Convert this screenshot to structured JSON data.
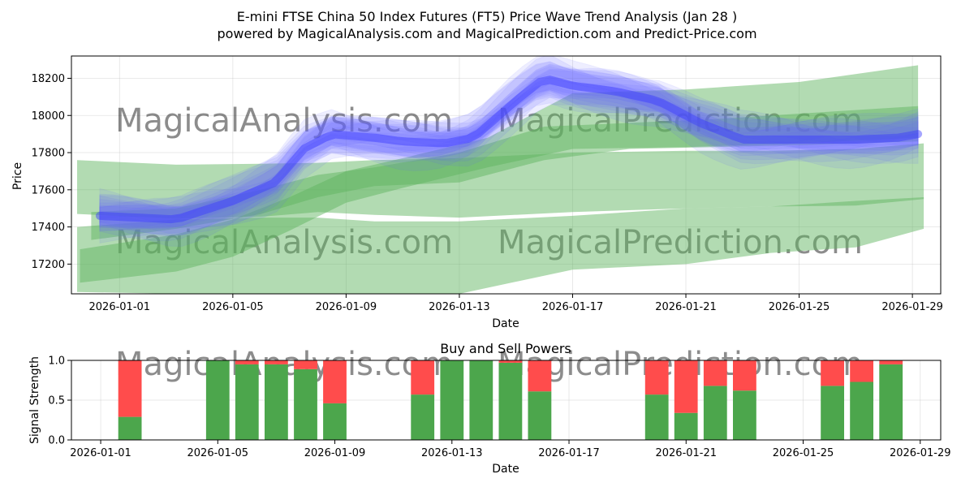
{
  "title_line1": "E-mini FTSE China 50 Index Futures (FT5) Price Wave Trend Analysis (Jan 28 )",
  "title_line2": "powered by MagicalAnalysis.com and MagicalPrediction.com and Predict-Price.com",
  "watermarks": [
    "MagicalAnalysis.com",
    "MagicalPrediction.com"
  ],
  "colors": {
    "buy": "#4ca64c",
    "sell": "#ff4c4c",
    "wave": "#6060ff",
    "band": "#5fb35f"
  },
  "chart_data": [
    {
      "type": "area",
      "title": "",
      "xlabel": "Date",
      "ylabel": "Price",
      "x_tick_labels": [
        "2026-01-01",
        "2026-01-05",
        "2026-01-09",
        "2026-01-13",
        "2026-01-17",
        "2026-01-21",
        "2026-01-25",
        "2026-01-29"
      ],
      "y_ticks": [
        17200,
        17400,
        17600,
        17800,
        18000,
        18200
      ],
      "xlim_days": [
        -1.7,
        29.0
      ],
      "ylim": [
        17040,
        18320
      ],
      "grid": true,
      "bands": [
        {
          "name": "band-upper",
          "x": [
            -1.5,
            2,
            5,
            7,
            9,
            12,
            16,
            20,
            23,
            26,
            28.4
          ],
          "lower": [
            17470,
            17445,
            17455,
            17480,
            17465,
            17450,
            17480,
            17500,
            17510,
            17515,
            17550
          ],
          "upper": [
            17760,
            17735,
            17740,
            17745,
            17760,
            17770,
            17800,
            17810,
            17810,
            17820,
            17850
          ]
        },
        {
          "name": "band-lower",
          "x": [
            -1.5,
            2,
            5,
            7,
            9,
            12,
            16,
            20,
            23,
            26,
            28.4
          ],
          "lower": [
            17050,
            17040,
            17040,
            17030,
            17030,
            17040,
            17170,
            17200,
            17260,
            17290,
            17390
          ],
          "upper": [
            17400,
            17440,
            17450,
            17450,
            17430,
            17430,
            17460,
            17500,
            17510,
            17540,
            17560
          ]
        },
        {
          "name": "band-trend-1",
          "x": [
            -1.4,
            2,
            4,
            6,
            8,
            10,
            13,
            16,
            20,
            24,
            28.2
          ],
          "lower": [
            17100,
            17160,
            17240,
            17380,
            17530,
            17610,
            17720,
            17820,
            17830,
            17850,
            17880
          ],
          "upper": [
            17280,
            17360,
            17440,
            17560,
            17700,
            17770,
            17880,
            18120,
            18140,
            18180,
            18270
          ]
        },
        {
          "name": "band-trend-2",
          "x": [
            -1.0,
            2,
            5,
            7,
            9,
            12,
            15,
            18,
            21,
            24,
            28.2
          ],
          "lower": [
            17330,
            17390,
            17470,
            17560,
            17620,
            17640,
            17760,
            17820,
            17830,
            17840,
            17860
          ],
          "upper": [
            17480,
            17500,
            17600,
            17680,
            17720,
            17800,
            17940,
            17960,
            17980,
            18010,
            18050
          ]
        }
      ],
      "wave_center": {
        "x": [
          -0.7,
          2,
          4,
          5.5,
          6.5,
          7.5,
          9,
          10,
          11.5,
          12.5,
          14,
          15,
          16,
          17.5,
          19,
          20.5,
          22,
          24,
          26,
          27.5,
          28.2
        ],
        "y": [
          17460,
          17440,
          17540,
          17640,
          17820,
          17900,
          17880,
          17860,
          17850,
          17880,
          18080,
          18200,
          18160,
          18130,
          18080,
          17960,
          17870,
          17870,
          17870,
          17880,
          17900
        ]
      },
      "wave_count": 14
    },
    {
      "type": "bar",
      "title": "Buy and Sell Powers",
      "xlabel": "Date",
      "ylabel": "Signal Strength",
      "x_tick_labels": [
        "2026-01-01",
        "2026-01-05",
        "2026-01-09",
        "2026-01-13",
        "2026-01-17",
        "2026-01-21",
        "2026-01-25",
        "2026-01-29"
      ],
      "y_tick_labels": [
        "0.0",
        "0.5",
        "1.0"
      ],
      "ylim": [
        0,
        1.0
      ],
      "xlim_days": [
        -1.0,
        28.7
      ],
      "series": [
        {
          "name": "Buy",
          "days": [
            1,
            4,
            5,
            6,
            7,
            8,
            11,
            12,
            13,
            14,
            15,
            19,
            20,
            21,
            22,
            25,
            26,
            27
          ],
          "values": [
            0.29,
            1.0,
            0.95,
            0.95,
            0.89,
            0.46,
            0.57,
            1.0,
            1.0,
            0.97,
            0.61,
            0.57,
            0.34,
            0.68,
            0.62,
            0.68,
            0.73,
            0.95
          ]
        },
        {
          "name": "Sell",
          "days": [
            1,
            4,
            5,
            6,
            7,
            8,
            11,
            12,
            13,
            14,
            15,
            19,
            20,
            21,
            22,
            25,
            26,
            27
          ],
          "values": [
            0.71,
            0.0,
            0.05,
            0.05,
            0.11,
            0.54,
            0.43,
            0.0,
            0.0,
            0.03,
            0.39,
            0.43,
            0.66,
            0.32,
            0.38,
            0.32,
            0.27,
            0.05
          ]
        }
      ]
    }
  ]
}
